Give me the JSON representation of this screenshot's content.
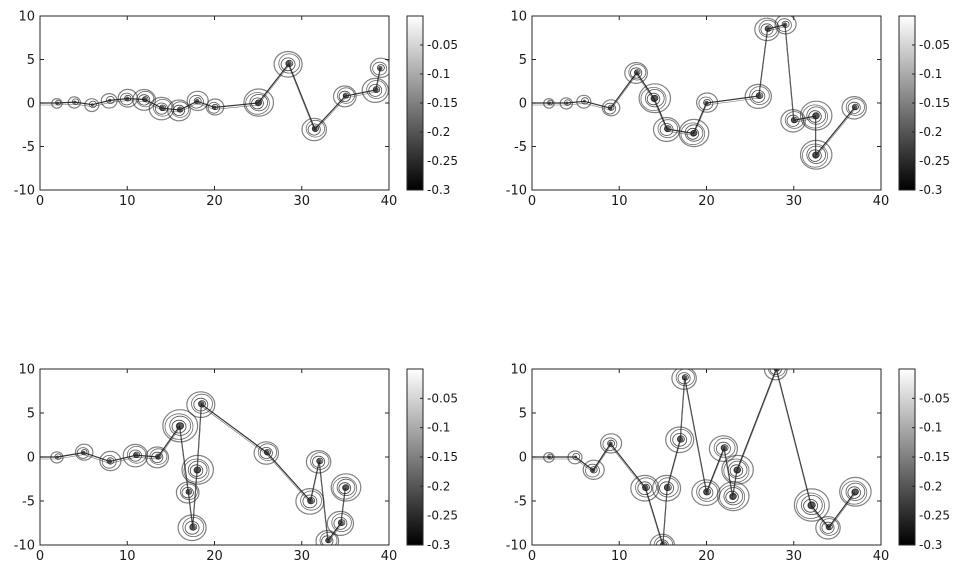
{
  "chart_data": [
    {
      "type": "heatmap",
      "title": "",
      "xlabel": "",
      "ylabel": "",
      "xlim": [
        0,
        40
      ],
      "ylim": [
        -10,
        10
      ],
      "x_ticks": [
        0,
        10,
        20,
        30,
        40
      ],
      "y_ticks": [
        10,
        5,
        0,
        -5,
        -10
      ],
      "colormap": "gray",
      "colorbar": {
        "range": [
          -0.3,
          0
        ],
        "ticks": [
          -0.05,
          -0.1,
          -0.15,
          -0.2,
          -0.25,
          -0.3
        ]
      },
      "vortices": [
        {
          "x": 2,
          "y": 0,
          "r": 0.6
        },
        {
          "x": 4,
          "y": 0.1,
          "r": 0.7
        },
        {
          "x": 6,
          "y": -0.2,
          "r": 0.8
        },
        {
          "x": 8,
          "y": 0.3,
          "r": 0.9
        },
        {
          "x": 10,
          "y": 0.5,
          "r": 1.1
        },
        {
          "x": 12,
          "y": 0.4,
          "r": 1.3
        },
        {
          "x": 14,
          "y": -0.6,
          "r": 1.4
        },
        {
          "x": 16,
          "y": -0.8,
          "r": 1.3
        },
        {
          "x": 18,
          "y": 0.2,
          "r": 1.2
        },
        {
          "x": 20,
          "y": -0.5,
          "r": 1.0
        },
        {
          "x": 25,
          "y": 0,
          "r": 1.7
        },
        {
          "x": 28.5,
          "y": 4.5,
          "r": 1.6
        },
        {
          "x": 31.5,
          "y": -3,
          "r": 1.4
        },
        {
          "x": 35,
          "y": 0.8,
          "r": 1.3
        },
        {
          "x": 38.5,
          "y": 1.5,
          "r": 1.5
        },
        {
          "x": 39,
          "y": 4,
          "r": 1.2
        }
      ]
    },
    {
      "type": "heatmap",
      "title": "",
      "xlabel": "",
      "ylabel": "",
      "xlim": [
        0,
        40
      ],
      "ylim": [
        -10,
        10
      ],
      "x_ticks": [
        0,
        10,
        20,
        30,
        40
      ],
      "y_ticks": [
        10,
        5,
        0,
        -5,
        -10
      ],
      "colormap": "gray",
      "colorbar": {
        "range": [
          -0.3,
          0
        ],
        "ticks": [
          -0.05,
          -0.1,
          -0.15,
          -0.2,
          -0.25,
          -0.3
        ]
      },
      "vortices": [
        {
          "x": 2,
          "y": 0,
          "r": 0.6
        },
        {
          "x": 4,
          "y": 0,
          "r": 0.7
        },
        {
          "x": 6,
          "y": 0.2,
          "r": 0.8
        },
        {
          "x": 9,
          "y": -0.6,
          "r": 1.0
        },
        {
          "x": 12,
          "y": 3.5,
          "r": 1.3
        },
        {
          "x": 14,
          "y": 0.5,
          "r": 1.8
        },
        {
          "x": 15.5,
          "y": -3,
          "r": 1.5
        },
        {
          "x": 18.5,
          "y": -3.5,
          "r": 1.7
        },
        {
          "x": 20,
          "y": 0,
          "r": 1.2
        },
        {
          "x": 26,
          "y": 0.8,
          "r": 1.5
        },
        {
          "x": 27,
          "y": 8.5,
          "r": 1.4
        },
        {
          "x": 29,
          "y": 9,
          "r": 1.2
        },
        {
          "x": 30,
          "y": -2,
          "r": 1.4
        },
        {
          "x": 32.5,
          "y": -1.5,
          "r": 1.8
        },
        {
          "x": 32.5,
          "y": -6,
          "r": 1.8
        },
        {
          "x": 37,
          "y": -0.5,
          "r": 1.4
        }
      ]
    },
    {
      "type": "heatmap",
      "title": "",
      "xlabel": "",
      "ylabel": "",
      "xlim": [
        0,
        40
      ],
      "ylim": [
        -10,
        10
      ],
      "x_ticks": [
        0,
        10,
        20,
        30,
        40
      ],
      "y_ticks": [
        10,
        5,
        0,
        -5,
        -10
      ],
      "colormap": "gray",
      "colorbar": {
        "range": [
          -0.3,
          0
        ],
        "ticks": [
          -0.05,
          -0.1,
          -0.15,
          -0.2,
          -0.25,
          -0.3
        ]
      },
      "vortices": [
        {
          "x": 2,
          "y": 0,
          "r": 0.7
        },
        {
          "x": 5,
          "y": 0.5,
          "r": 1.0
        },
        {
          "x": 8,
          "y": -0.5,
          "r": 1.2
        },
        {
          "x": 11,
          "y": 0.2,
          "r": 1.4
        },
        {
          "x": 13.5,
          "y": 0,
          "r": 1.3
        },
        {
          "x": 16,
          "y": 3.5,
          "r": 2.0
        },
        {
          "x": 18.5,
          "y": 6,
          "r": 1.6
        },
        {
          "x": 18,
          "y": -1.5,
          "r": 1.8
        },
        {
          "x": 17,
          "y": -4,
          "r": 1.3
        },
        {
          "x": 17.5,
          "y": -8,
          "r": 1.6
        },
        {
          "x": 26,
          "y": 0.5,
          "r": 1.4
        },
        {
          "x": 32,
          "y": -0.5,
          "r": 1.4
        },
        {
          "x": 31,
          "y": -5,
          "r": 1.6
        },
        {
          "x": 35,
          "y": -3.5,
          "r": 1.7
        },
        {
          "x": 34.5,
          "y": -7.5,
          "r": 1.5
        },
        {
          "x": 33,
          "y": -9.5,
          "r": 1.3
        }
      ]
    },
    {
      "type": "heatmap",
      "title": "",
      "xlabel": "",
      "ylabel": "",
      "xlim": [
        0,
        40
      ],
      "ylim": [
        -10,
        10
      ],
      "x_ticks": [
        0,
        10,
        20,
        30,
        40
      ],
      "y_ticks": [
        10,
        5,
        0,
        -5,
        -10
      ],
      "colormap": "gray",
      "colorbar": {
        "range": [
          -0.3,
          0
        ],
        "ticks": [
          -0.05,
          -0.1,
          -0.15,
          -0.2,
          -0.25,
          -0.3
        ]
      },
      "vortices": [
        {
          "x": 2,
          "y": 0,
          "r": 0.6
        },
        {
          "x": 5,
          "y": 0,
          "r": 0.8
        },
        {
          "x": 7,
          "y": -1.5,
          "r": 1.2
        },
        {
          "x": 9,
          "y": 1.5,
          "r": 1.2
        },
        {
          "x": 13,
          "y": -3.5,
          "r": 1.6
        },
        {
          "x": 15.5,
          "y": -3.5,
          "r": 1.6
        },
        {
          "x": 17,
          "y": 2,
          "r": 1.6
        },
        {
          "x": 17.5,
          "y": 9,
          "r": 1.4
        },
        {
          "x": 22,
          "y": 1,
          "r": 1.6
        },
        {
          "x": 23.5,
          "y": -1.5,
          "r": 1.8
        },
        {
          "x": 20,
          "y": -4,
          "r": 1.6
        },
        {
          "x": 23,
          "y": -4.5,
          "r": 1.8
        },
        {
          "x": 15,
          "y": -10,
          "r": 1.4
        },
        {
          "x": 32,
          "y": -5.5,
          "r": 2.0
        },
        {
          "x": 34,
          "y": -8,
          "r": 1.4
        },
        {
          "x": 37,
          "y": -4,
          "r": 1.8
        },
        {
          "x": 28,
          "y": 10,
          "r": 1.3
        }
      ]
    }
  ]
}
